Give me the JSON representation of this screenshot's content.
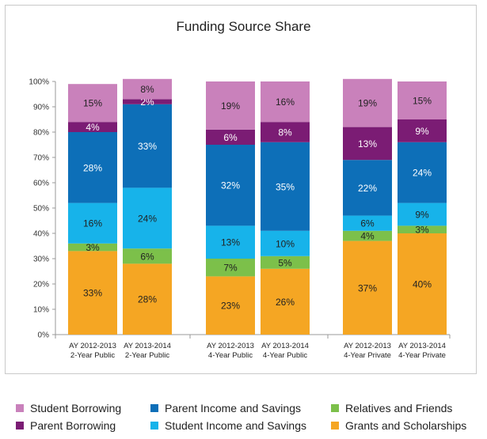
{
  "chart_data": {
    "type": "bar",
    "stacked": true,
    "title": "Funding Source Share",
    "ylim": [
      0,
      100
    ],
    "y_ticks": [
      "0%",
      "10%",
      "20%",
      "30%",
      "40%",
      "50%",
      "60%",
      "70%",
      "80%",
      "90%",
      "100%"
    ],
    "categories": [
      [
        "AY 2012-2013",
        "2-Year Public"
      ],
      [
        "AY 2013-2014",
        "2-Year Public"
      ],
      [
        "AY 2012-2013",
        "4-Year Public"
      ],
      [
        "AY 2013-2014",
        "4-Year Public"
      ],
      [
        "AY 2012-2013",
        "4-Year Private"
      ],
      [
        "AY 2013-2014",
        "4-Year Private"
      ]
    ],
    "groups": [
      [
        0,
        1
      ],
      [
        2,
        3
      ],
      [
        4,
        5
      ]
    ],
    "series": [
      {
        "name": "Grants and Scholarships",
        "color": "#f5a623",
        "values": [
          33,
          28,
          23,
          26,
          37,
          40
        ],
        "labels": [
          "33%",
          "28%",
          "23%",
          "26%",
          "37%",
          "40%"
        ],
        "light_text": false
      },
      {
        "name": "Relatives and Friends",
        "color": "#7cc04a",
        "values": [
          3,
          6,
          7,
          5,
          4,
          3
        ],
        "labels": [
          "3%",
          "6%",
          "7%",
          "5%",
          "4%",
          "3%"
        ],
        "light_text": false
      },
      {
        "name": "Student Income and Savings",
        "color": "#17b3ea",
        "values": [
          16,
          24,
          13,
          10,
          6,
          9
        ],
        "labels": [
          "16%",
          "24%",
          "13%",
          "10%",
          "6%",
          "9%"
        ],
        "light_text": false
      },
      {
        "name": "Parent Income and Savings",
        "color": "#0d6fb8",
        "values": [
          28,
          33,
          32,
          35,
          22,
          24
        ],
        "labels": [
          "28%",
          "33%",
          "32%",
          "35%",
          "22%",
          "24%"
        ],
        "light_text": true
      },
      {
        "name": "Parent Borrowing",
        "color": "#7b1c74",
        "values": [
          4,
          2,
          6,
          8,
          13,
          9
        ],
        "labels": [
          "4%",
          "2%",
          "6%",
          "8%",
          "13%",
          "9%"
        ],
        "light_text": true
      },
      {
        "name": "Student Borrowing",
        "color": "#c981bb",
        "values": [
          15,
          8,
          19,
          16,
          19,
          15
        ],
        "labels": [
          "15%",
          "8%",
          "19%",
          "16%",
          "19%",
          "15%"
        ],
        "light_text": false
      }
    ],
    "legend": {
      "placement": "bottom",
      "rows": [
        [
          "Student Borrowing",
          "Parent Income and Savings",
          "Relatives and Friends"
        ],
        [
          "Parent Borrowing",
          "Student Income and Savings",
          "Grants and Scholarships"
        ]
      ]
    }
  }
}
